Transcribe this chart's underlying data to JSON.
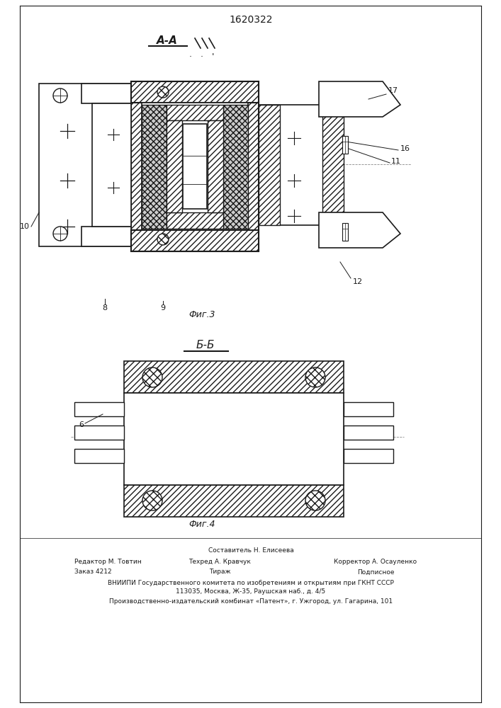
{
  "patent_number": "1620322",
  "fig3_label": "Фиг.3",
  "fig4_label": "Фиг.4",
  "section_aa": "А-А",
  "section_bb": "Б-Б",
  "footer_line1": "Составитель Н. Елисеева",
  "footer_line2a": "Редактор М. Товтин",
  "footer_line2b": "Техред А. Кравчук",
  "footer_line2c": "Корректор А. Осауленко",
  "footer_line3a": "Заказ 4212",
  "footer_line3b": "Тираж",
  "footer_line3c": "Подписное",
  "footer_line4": "ВНИИПИ Государственного комитета по изобретениям и открытиям при ГКНТ СССР",
  "footer_line5": "113035, Москва, Ж-35, Раушская наб., д. 4/5",
  "footer_line6": "Производственно-издательский комбинат «Патент», г. Ужгород, ул. Гагарина, 101",
  "bg_color": "#ffffff",
  "line_color": "#1a1a1a"
}
